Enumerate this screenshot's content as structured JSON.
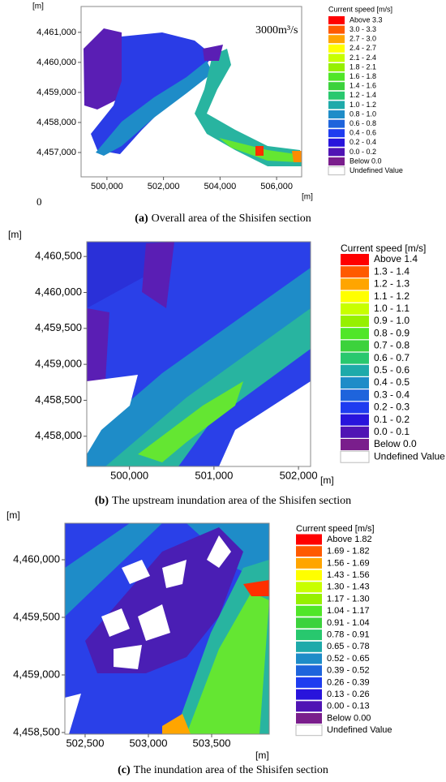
{
  "chart_data": [
    {
      "type": "map",
      "x_unit": "[m]",
      "y_unit": "[m]",
      "xlim": [
        499086,
        506886
      ],
      "ylim": [
        4456190,
        4461860
      ],
      "xticks": [
        {
          "value": 500000,
          "label": "500,000"
        },
        {
          "value": 502000,
          "label": "502,000"
        },
        {
          "value": 504000,
          "label": "504,000"
        },
        {
          "value": 506000,
          "label": "506,000"
        }
      ],
      "yticks": [
        {
          "value": 4457000,
          "label": "4,457,000"
        },
        {
          "value": 4458000,
          "label": "4,458,000"
        },
        {
          "value": 4459000,
          "label": "4,459,000"
        },
        {
          "value": 4460000,
          "label": "4,460,000"
        },
        {
          "value": 4461000,
          "label": "4,461,000"
        }
      ],
      "legend_title": "Current speed [m/s]",
      "legend": [
        {
          "label": "Above 3.3",
          "color": "#ff0000"
        },
        {
          "label": "3.0 - 3.3",
          "color": "#ff5a00"
        },
        {
          "label": "2.7 - 3.0",
          "color": "#ffa500"
        },
        {
          "label": "2.4 - 2.7",
          "color": "#ffff00"
        },
        {
          "label": "2.1 - 2.4",
          "color": "#c8ff00"
        },
        {
          "label": "1.8 - 2.1",
          "color": "#96f000"
        },
        {
          "label": "1.6 - 1.8",
          "color": "#50e628"
        },
        {
          "label": "1.4 - 1.6",
          "color": "#3cd23c"
        },
        {
          "label": "1.2 - 1.4",
          "color": "#28c86e"
        },
        {
          "label": "1.0 - 1.2",
          "color": "#1eaaaa"
        },
        {
          "label": "0.8 - 1.0",
          "color": "#1e8cc8"
        },
        {
          "label": "0.6 - 0.8",
          "color": "#1e64dc"
        },
        {
          "label": "0.4 - 0.6",
          "color": "#1e3cf0"
        },
        {
          "label": "0.2 - 0.4",
          "color": "#2814dc"
        },
        {
          "label": "0.0 - 0.2",
          "color": "#5014b4"
        },
        {
          "label": "Below 0.0",
          "color": "#7a1e8c"
        },
        {
          "label": "Undefined Value",
          "color": "#ffffff"
        }
      ],
      "annotations": [
        "3000m³/s",
        "0"
      ],
      "caption_label": "(a)",
      "caption": "Overall area of the Shisifen section"
    },
    {
      "type": "map",
      "x_unit": "[m]",
      "y_unit": "[m]",
      "xlim": [
        499495,
        502143
      ],
      "ylim": [
        4457580,
        4460705
      ],
      "xticks": [
        {
          "value": 500000,
          "label": "500,000"
        },
        {
          "value": 501000,
          "label": "501,000"
        },
        {
          "value": 502000,
          "label": "502,000"
        }
      ],
      "yticks": [
        {
          "value": 4458000,
          "label": "4,458,000"
        },
        {
          "value": 4458500,
          "label": "4,458,500"
        },
        {
          "value": 4459000,
          "label": "4,459,000"
        },
        {
          "value": 4459500,
          "label": "4,459,500"
        },
        {
          "value": 4460000,
          "label": "4,460,000"
        },
        {
          "value": 4460500,
          "label": "4,460,500"
        }
      ],
      "legend_title": "Current speed [m/s]",
      "legend": [
        {
          "label": "Above 1.4",
          "color": "#ff0000"
        },
        {
          "label": "1.3 - 1.4",
          "color": "#ff5a00"
        },
        {
          "label": "1.2 - 1.3",
          "color": "#ffa500"
        },
        {
          "label": "1.1 - 1.2",
          "color": "#ffff00"
        },
        {
          "label": "1.0 - 1.1",
          "color": "#c8ff00"
        },
        {
          "label": "0.9 - 1.0",
          "color": "#96f000"
        },
        {
          "label": "0.8 - 0.9",
          "color": "#50e628"
        },
        {
          "label": "0.7 - 0.8",
          "color": "#3cd23c"
        },
        {
          "label": "0.6 - 0.7",
          "color": "#28c86e"
        },
        {
          "label": "0.5 - 0.6",
          "color": "#1eaaaa"
        },
        {
          "label": "0.4 - 0.5",
          "color": "#1e8cc8"
        },
        {
          "label": "0.3 - 0.4",
          "color": "#1e64dc"
        },
        {
          "label": "0.2 - 0.3",
          "color": "#1e3cf0"
        },
        {
          "label": "0.1 - 0.2",
          "color": "#2814dc"
        },
        {
          "label": "0.0 - 0.1",
          "color": "#5014b4"
        },
        {
          "label": "Below 0.0",
          "color": "#7a1e8c"
        },
        {
          "label": "Undefined Value",
          "color": "#ffffff"
        }
      ],
      "caption_label": "(b)",
      "caption": "The upstream inundation area of the Shisifen section"
    },
    {
      "type": "map",
      "x_unit": "[m]",
      "y_unit": "[m]",
      "xlim": [
        502340,
        503955
      ],
      "ylim": [
        4458486,
        4460317
      ],
      "xticks": [
        {
          "value": 502500,
          "label": "502,500"
        },
        {
          "value": 503000,
          "label": "503,000"
        },
        {
          "value": 503500,
          "label": "503,500"
        }
      ],
      "yticks": [
        {
          "value": 4458500,
          "label": "4,458,500"
        },
        {
          "value": 4459000,
          "label": "4,459,000"
        },
        {
          "value": 4459500,
          "label": "4,459,500"
        },
        {
          "value": 4460000,
          "label": "4,460,000"
        }
      ],
      "legend_title": "Current speed [m/s]",
      "legend": [
        {
          "label": "Above 1.82",
          "color": "#ff0000"
        },
        {
          "label": "1.69 - 1.82",
          "color": "#ff5a00"
        },
        {
          "label": "1.56 - 1.69",
          "color": "#ffa500"
        },
        {
          "label": "1.43 - 1.56",
          "color": "#ffff00"
        },
        {
          "label": "1.30 - 1.43",
          "color": "#c8ff00"
        },
        {
          "label": "1.17 - 1.30",
          "color": "#96f000"
        },
        {
          "label": "1.04 - 1.17",
          "color": "#50e628"
        },
        {
          "label": "0.91 - 1.04",
          "color": "#3cd23c"
        },
        {
          "label": "0.78 - 0.91",
          "color": "#28c86e"
        },
        {
          "label": "0.65 - 0.78",
          "color": "#1eaaaa"
        },
        {
          "label": "0.52 - 0.65",
          "color": "#1e8cc8"
        },
        {
          "label": "0.39 - 0.52",
          "color": "#1e64dc"
        },
        {
          "label": "0.26 - 0.39",
          "color": "#1e3cf0"
        },
        {
          "label": "0.13 - 0.26",
          "color": "#2814dc"
        },
        {
          "label": "0.00 - 0.13",
          "color": "#5014b4"
        },
        {
          "label": "Below 0.00",
          "color": "#7a1e8c"
        },
        {
          "label": "Undefined Value",
          "color": "#ffffff"
        }
      ],
      "caption_label": "(c)",
      "caption": "The inundation area of the Shisifen section"
    }
  ]
}
